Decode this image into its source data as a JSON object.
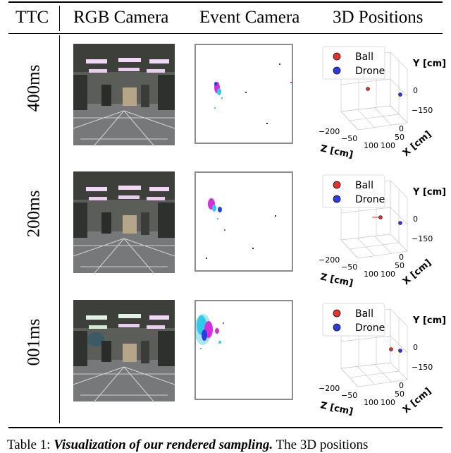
{
  "table": {
    "headers": {
      "ttc": "TTC",
      "rgb": "RGB Camera",
      "event": "Event Camera",
      "positions": "3D Positions"
    },
    "rows": [
      {
        "ttc": "400ms"
      },
      {
        "ttc": "200ms"
      },
      {
        "ttc": "001ms"
      }
    ]
  },
  "plot": {
    "legend": {
      "ball": "Ball",
      "drone": "Drone"
    },
    "axis_labels": {
      "x": "X [cm]",
      "y": "Y [cm]",
      "z": "Z [cm]"
    },
    "ticks": {
      "y": [
        "0",
        "−150"
      ],
      "z": [
        "−200",
        "−50",
        "100"
      ],
      "x": [
        "0",
        "50",
        "100"
      ]
    },
    "colors": {
      "ball": "#e8332b",
      "drone": "#2b3de0"
    }
  },
  "caption": {
    "prefix": "Table 1:",
    "bold": "Visualization of our rendered sampling.",
    "rest": "The 3D positions"
  }
}
